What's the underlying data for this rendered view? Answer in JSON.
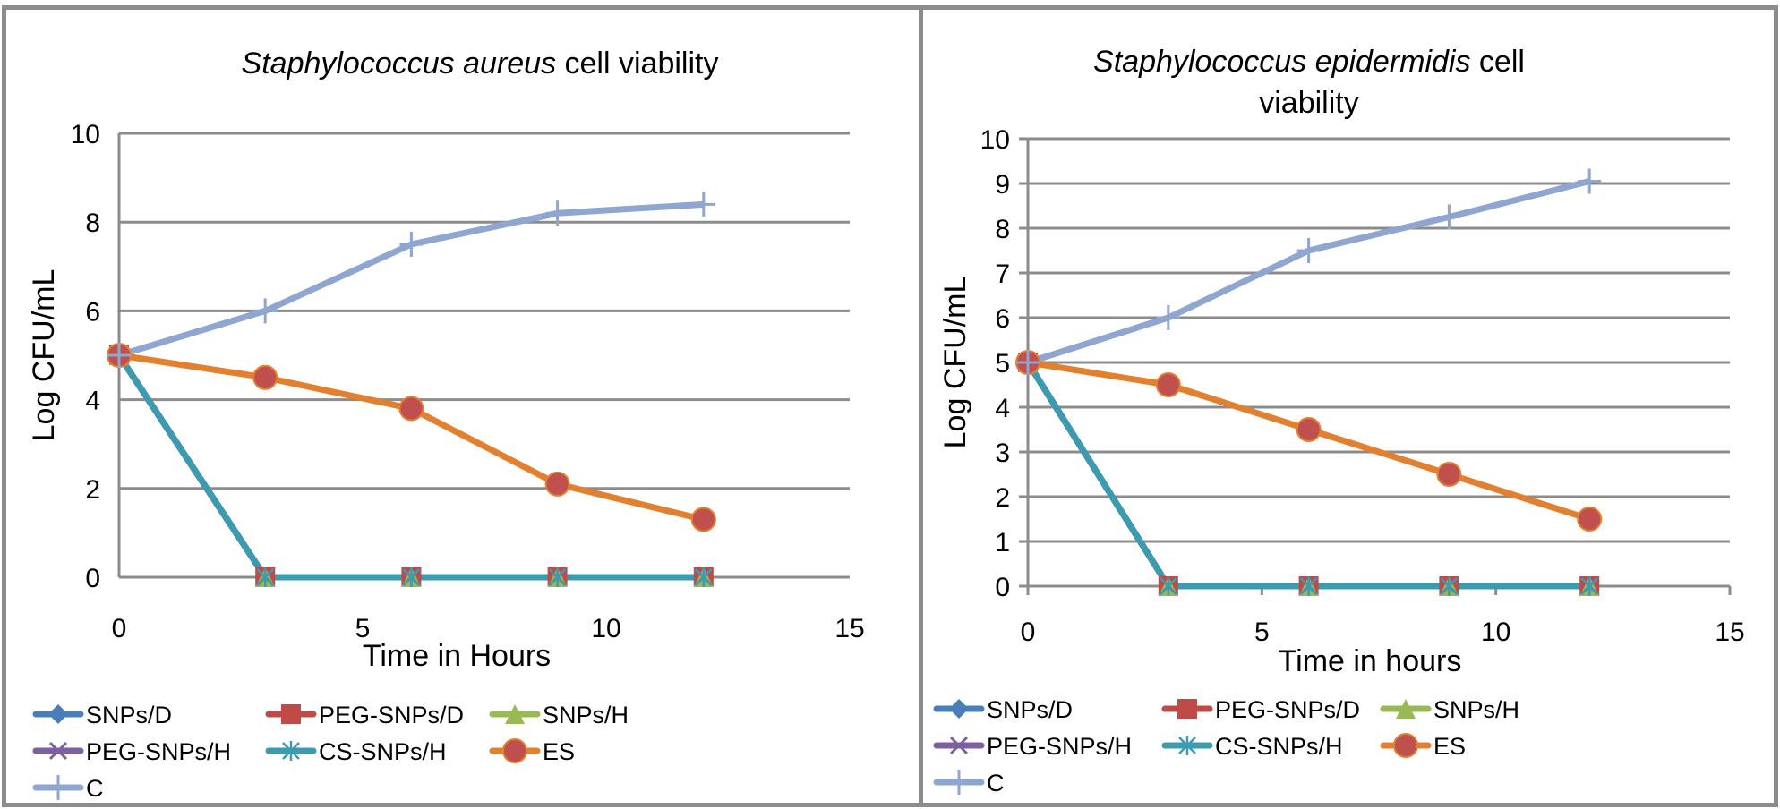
{
  "chart_data": [
    {
      "type": "line",
      "title_italic": "Staphylococcus aureus",
      "title_rest": " cell viability",
      "title": "Staphylococcus aureus cell viability",
      "xlabel": "Time in Hours",
      "ylabel": "Log CFU/mL",
      "xlim": [
        0,
        15
      ],
      "ylim": [
        0,
        10
      ],
      "xticks": [
        0,
        5,
        10,
        15
      ],
      "yticks": [
        0,
        2,
        4,
        6,
        8,
        10
      ],
      "grid": true,
      "legend_position": "bottom",
      "x": [
        0,
        3,
        6,
        9,
        12
      ],
      "series": [
        {
          "name": "SNPs/D",
          "color": "#4a7ebb",
          "marker": "diamond",
          "values": [
            5,
            0,
            0,
            0,
            0
          ]
        },
        {
          "name": "PEG-SNPs/D",
          "color": "#be4b48",
          "marker": "square",
          "values": [
            5,
            0,
            0,
            0,
            0
          ]
        },
        {
          "name": "SNPs/H",
          "color": "#98b954",
          "marker": "triangle",
          "values": [
            5,
            0,
            0,
            0,
            0
          ]
        },
        {
          "name": "PEG-SNPs/H",
          "color": "#7d60a0",
          "marker": "x",
          "values": [
            5,
            0,
            0,
            0,
            0
          ]
        },
        {
          "name": "CS-SNPs/H",
          "color": "#3b9bb1",
          "marker": "asterisk",
          "values": [
            5,
            0,
            0,
            0,
            0
          ]
        },
        {
          "name": "ES",
          "color": "#e2802f",
          "marker": "circle",
          "marker_color": "#c0504d",
          "values": [
            5,
            4.5,
            3.8,
            2.1,
            1.3
          ]
        },
        {
          "name": "C",
          "color": "#8ea6d0",
          "marker": "plus",
          "values": [
            5,
            6,
            7.5,
            8.2,
            8.4
          ]
        }
      ]
    },
    {
      "type": "line",
      "title_italic": "Staphylococcus epidermidis",
      "title_rest": " cell",
      "title_line2": "viability",
      "title": "Staphylococcus epidermidis cell viability",
      "xlabel": "Time in hours",
      "ylabel": "Log CFU/mL",
      "xlim": [
        0,
        15
      ],
      "ylim": [
        0,
        10
      ],
      "xticks": [
        0,
        5,
        10,
        15
      ],
      "yticks": [
        0,
        1,
        2,
        3,
        4,
        5,
        6,
        7,
        8,
        9,
        10
      ],
      "grid": true,
      "legend_position": "bottom",
      "x": [
        0,
        3,
        6,
        9,
        12
      ],
      "series": [
        {
          "name": "SNPs/D",
          "color": "#4a7ebb",
          "marker": "diamond",
          "values": [
            5,
            0,
            0,
            0,
            0
          ]
        },
        {
          "name": "PEG-SNPs/D",
          "color": "#be4b48",
          "marker": "square",
          "values": [
            5,
            0,
            0,
            0,
            0
          ]
        },
        {
          "name": "SNPs/H",
          "color": "#98b954",
          "marker": "triangle",
          "values": [
            5,
            0,
            0,
            0,
            0
          ]
        },
        {
          "name": "PEG-SNPs/H",
          "color": "#7d60a0",
          "marker": "x",
          "values": [
            5,
            0,
            0,
            0,
            0
          ]
        },
        {
          "name": "CS-SNPs/H",
          "color": "#3b9bb1",
          "marker": "asterisk",
          "values": [
            5,
            0,
            0,
            0,
            0
          ]
        },
        {
          "name": "ES",
          "color": "#e2802f",
          "marker": "circle",
          "marker_color": "#c0504d",
          "values": [
            5,
            4.5,
            3.5,
            2.5,
            1.5
          ]
        },
        {
          "name": "C",
          "color": "#8ea6d0",
          "marker": "plus",
          "values": [
            5,
            6,
            7.5,
            8.25,
            9.05
          ]
        }
      ]
    }
  ]
}
